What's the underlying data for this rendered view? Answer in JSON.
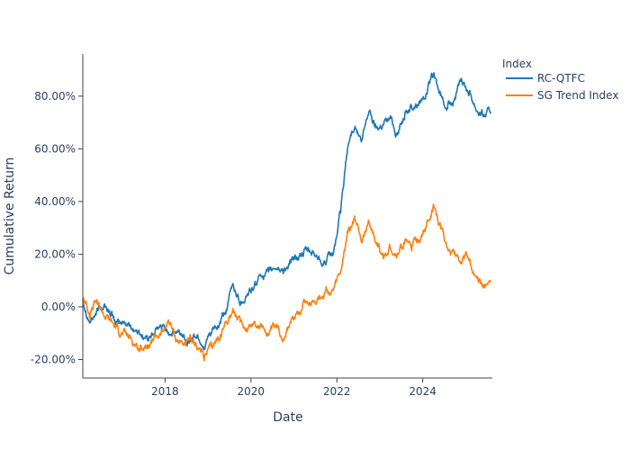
{
  "chart_data": {
    "type": "line",
    "xlabel": "Date",
    "ylabel": "Cumulative Return",
    "x_tick_labels": [
      "2018",
      "2020",
      "2022",
      "2024"
    ],
    "y_tick_labels": [
      "-20.00%",
      "0.00%",
      "20.00%",
      "40.00%",
      "60.00%",
      "80.00%"
    ],
    "x_range": [
      "2016-02-01",
      "2025-08-15"
    ],
    "y_range": [
      -0.27,
      0.96
    ],
    "legend": {
      "title": "Index",
      "position": "top-right"
    },
    "grid": false,
    "series": [
      {
        "name": "RC-QTFC",
        "color": "#1f77b4",
        "points": [
          [
            "2016-02-01",
            0.03
          ],
          [
            "2016-04-01",
            -0.05
          ],
          [
            "2016-06-01",
            -0.02
          ],
          [
            "2016-08-01",
            0.01
          ],
          [
            "2016-10-01",
            -0.03
          ],
          [
            "2016-12-01",
            -0.07
          ],
          [
            "2017-02-01",
            -0.06
          ],
          [
            "2017-04-01",
            -0.08
          ],
          [
            "2017-06-01",
            -0.1
          ],
          [
            "2017-08-01",
            -0.12
          ],
          [
            "2017-10-01",
            -0.1
          ],
          [
            "2017-12-01",
            -0.08
          ],
          [
            "2018-02-01",
            -0.09
          ],
          [
            "2018-04-01",
            -0.1
          ],
          [
            "2018-06-01",
            -0.11
          ],
          [
            "2018-08-01",
            -0.12
          ],
          [
            "2018-10-01",
            -0.11
          ],
          [
            "2018-12-01",
            -0.15
          ],
          [
            "2019-02-01",
            -0.1
          ],
          [
            "2019-04-01",
            -0.08
          ],
          [
            "2019-06-01",
            -0.02
          ],
          [
            "2019-08-01",
            0.08
          ],
          [
            "2019-10-01",
            0.02
          ],
          [
            "2019-12-01",
            0.05
          ],
          [
            "2020-02-01",
            0.07
          ],
          [
            "2020-04-01",
            0.13
          ],
          [
            "2020-06-01",
            0.12
          ],
          [
            "2020-08-01",
            0.15
          ],
          [
            "2020-10-01",
            0.14
          ],
          [
            "2020-12-01",
            0.16
          ],
          [
            "2021-02-01",
            0.19
          ],
          [
            "2021-04-01",
            0.21
          ],
          [
            "2021-06-01",
            0.2
          ],
          [
            "2021-08-01",
            0.19
          ],
          [
            "2021-10-01",
            0.17
          ],
          [
            "2021-12-01",
            0.2
          ],
          [
            "2022-02-01",
            0.35
          ],
          [
            "2022-04-01",
            0.6
          ],
          [
            "2022-06-01",
            0.7
          ],
          [
            "2022-08-01",
            0.62
          ],
          [
            "2022-10-01",
            0.75
          ],
          [
            "2022-12-01",
            0.68
          ],
          [
            "2023-02-01",
            0.7
          ],
          [
            "2023-04-01",
            0.72
          ],
          [
            "2023-06-01",
            0.66
          ],
          [
            "2023-08-01",
            0.74
          ],
          [
            "2023-10-01",
            0.76
          ],
          [
            "2023-12-01",
            0.78
          ],
          [
            "2024-02-01",
            0.82
          ],
          [
            "2024-04-01",
            0.88
          ],
          [
            "2024-06-01",
            0.8
          ],
          [
            "2024-08-01",
            0.76
          ],
          [
            "2024-10-01",
            0.8
          ],
          [
            "2024-12-01",
            0.85
          ],
          [
            "2025-02-01",
            0.82
          ],
          [
            "2025-04-01",
            0.76
          ],
          [
            "2025-06-01",
            0.73
          ],
          [
            "2025-08-01",
            0.74
          ]
        ]
      },
      {
        "name": "SG Trend Index",
        "color": "#ff7f0e",
        "points": [
          [
            "2016-02-01",
            0.04
          ],
          [
            "2016-04-01",
            -0.02
          ],
          [
            "2016-06-01",
            0.02
          ],
          [
            "2016-08-01",
            -0.03
          ],
          [
            "2016-10-01",
            -0.06
          ],
          [
            "2016-12-01",
            -0.09
          ],
          [
            "2017-02-01",
            -0.11
          ],
          [
            "2017-04-01",
            -0.13
          ],
          [
            "2017-06-01",
            -0.16
          ],
          [
            "2017-08-01",
            -0.14
          ],
          [
            "2017-10-01",
            -0.12
          ],
          [
            "2017-12-01",
            -0.1
          ],
          [
            "2018-02-01",
            -0.05
          ],
          [
            "2018-04-01",
            -0.12
          ],
          [
            "2018-06-01",
            -0.14
          ],
          [
            "2018-08-01",
            -0.13
          ],
          [
            "2018-10-01",
            -0.15
          ],
          [
            "2018-12-01",
            -0.19
          ],
          [
            "2019-02-01",
            -0.16
          ],
          [
            "2019-04-01",
            -0.12
          ],
          [
            "2019-06-01",
            -0.06
          ],
          [
            "2019-08-01",
            -0.01
          ],
          [
            "2019-10-01",
            -0.07
          ],
          [
            "2019-12-01",
            -0.08
          ],
          [
            "2020-02-01",
            -0.06
          ],
          [
            "2020-04-01",
            -0.08
          ],
          [
            "2020-06-01",
            -0.1
          ],
          [
            "2020-08-01",
            -0.09
          ],
          [
            "2020-10-01",
            -0.11
          ],
          [
            "2020-12-01",
            -0.06
          ],
          [
            "2021-02-01",
            -0.02
          ],
          [
            "2021-04-01",
            0.03
          ],
          [
            "2021-06-01",
            0.02
          ],
          [
            "2021-08-01",
            0.04
          ],
          [
            "2021-10-01",
            0.06
          ],
          [
            "2021-12-01",
            0.05
          ],
          [
            "2022-02-01",
            0.12
          ],
          [
            "2022-04-01",
            0.28
          ],
          [
            "2022-06-01",
            0.33
          ],
          [
            "2022-08-01",
            0.26
          ],
          [
            "2022-10-01",
            0.32
          ],
          [
            "2022-12-01",
            0.25
          ],
          [
            "2023-02-01",
            0.18
          ],
          [
            "2023-04-01",
            0.23
          ],
          [
            "2023-06-01",
            0.2
          ],
          [
            "2023-08-01",
            0.25
          ],
          [
            "2023-10-01",
            0.22
          ],
          [
            "2023-12-01",
            0.26
          ],
          [
            "2024-02-01",
            0.3
          ],
          [
            "2024-04-01",
            0.37
          ],
          [
            "2024-06-01",
            0.3
          ],
          [
            "2024-08-01",
            0.22
          ],
          [
            "2024-10-01",
            0.2
          ],
          [
            "2024-12-01",
            0.18
          ],
          [
            "2025-02-01",
            0.19
          ],
          [
            "2025-04-01",
            0.09
          ],
          [
            "2025-06-01",
            0.08
          ],
          [
            "2025-08-01",
            0.1
          ]
        ]
      }
    ]
  }
}
